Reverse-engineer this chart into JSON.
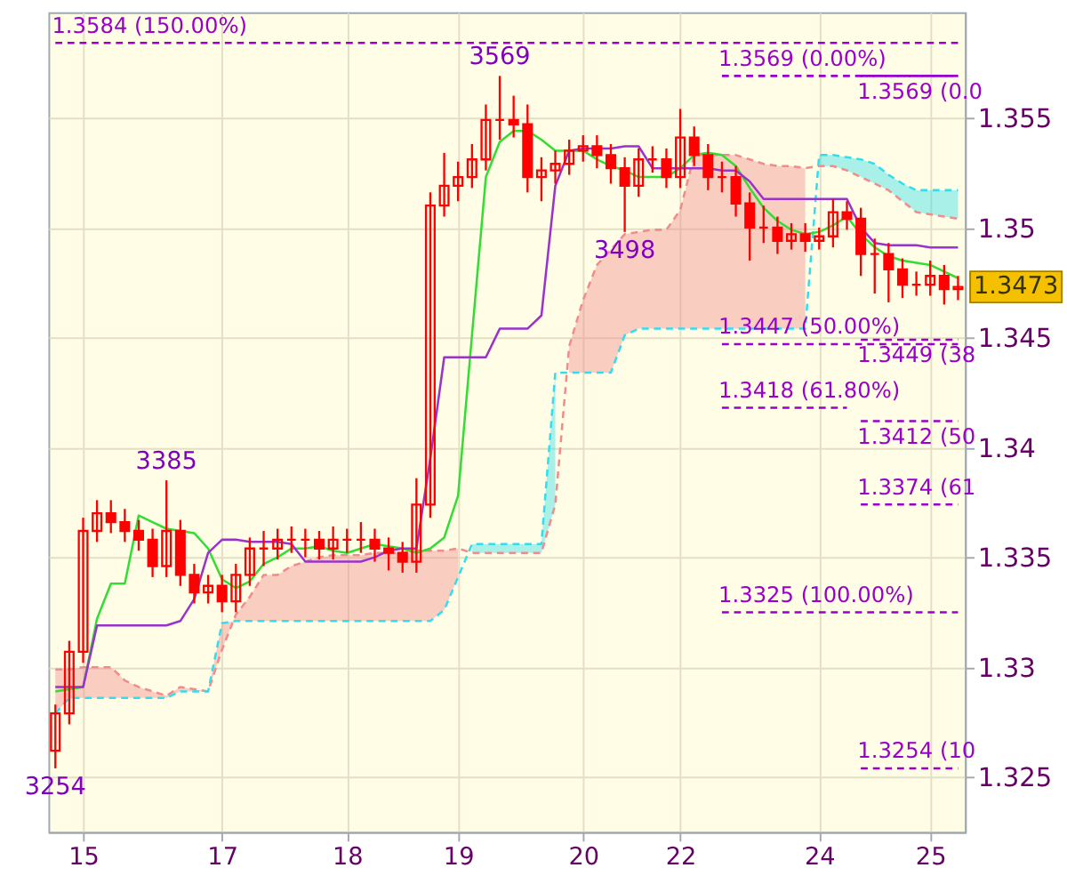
{
  "chart_data": {
    "type": "candlestick",
    "categories": [
      null,
      null,
      "15",
      null,
      null,
      null,
      null,
      null,
      null,
      null,
      null,
      null,
      "17",
      null,
      null,
      null,
      null,
      null,
      null,
      null,
      null,
      "18",
      null,
      null,
      null,
      null,
      null,
      null,
      null,
      "19",
      null,
      null,
      null,
      null,
      null,
      null,
      null,
      null,
      "20",
      null,
      null,
      null,
      null,
      null,
      null,
      "22",
      null,
      null,
      null,
      null,
      null,
      null,
      null,
      null,
      null,
      "24",
      null,
      null,
      null,
      null,
      null,
      null,
      null,
      "25",
      null,
      null
    ],
    "ylim": [
      1.3225,
      1.3598
    ],
    "yticks": [
      1.325,
      1.33,
      1.335,
      1.34,
      1.345,
      1.35,
      1.355
    ],
    "grid": true,
    "series": [
      {
        "type": "line",
        "color": "#f08c8c",
        "line_style": "dashed",
        "values": [
          1.3299,
          1.3299,
          1.33,
          1.33,
          1.33,
          1.3294,
          1.3291,
          1.3289,
          1.3287,
          1.3291,
          1.329,
          1.3289,
          1.3308,
          1.3324,
          1.3332,
          1.3342,
          1.3342,
          1.3346,
          1.3348,
          1.335,
          1.3351,
          1.3351,
          1.3351,
          1.3352,
          1.3352,
          1.3352,
          1.3353,
          1.3353,
          1.3353,
          1.3354,
          1.3352,
          1.3352,
          1.3352,
          1.3352,
          1.3352,
          1.3352,
          1.3374,
          1.3446,
          1.3467,
          1.3483,
          1.349,
          1.3497,
          1.3498,
          1.3499,
          1.3499,
          1.3508,
          1.3533,
          1.3533,
          1.3533,
          1.3533,
          1.3531,
          1.3529,
          1.3528,
          1.3528,
          1.3527,
          1.3528,
          1.3528,
          1.3526,
          1.3523,
          1.352,
          1.3517,
          1.3512,
          1.3507,
          1.3506,
          1.3505,
          1.3504
        ],
        "upper": [
          1.3299,
          1.3299,
          1.33,
          1.33,
          1.33,
          1.3294,
          1.3291,
          1.3289,
          1.3287,
          1.3291,
          1.329,
          1.3289,
          1.3308,
          1.3324,
          1.3332,
          1.3342,
          1.3342,
          1.3346,
          1.3348,
          1.335,
          1.3351,
          1.3351,
          1.3351,
          1.3352,
          1.3352,
          1.3352,
          1.3353,
          1.3353,
          1.3353,
          1.3354,
          null,
          null,
          null,
          null,
          null,
          null,
          null,
          1.3446,
          1.3467,
          1.3483,
          1.349,
          1.3497,
          1.3498,
          1.3499,
          1.3499,
          1.3508,
          1.3533,
          1.3533,
          1.3533,
          1.3533,
          1.3531,
          1.3529,
          1.3528,
          1.3528,
          1.3527,
          null,
          null,
          null,
          null,
          null,
          null,
          null,
          null,
          null,
          null,
          null
        ],
        "lower": [
          1.3279,
          1.3286,
          1.3286,
          1.3286,
          1.3286,
          1.3286,
          1.3286,
          1.3286,
          1.3286,
          1.3289,
          1.3289,
          1.3289,
          1.332,
          1.3321,
          1.3321,
          1.3321,
          1.3321,
          1.3321,
          1.3321,
          1.3321,
          1.3321,
          1.3321,
          1.3321,
          1.3321,
          1.3321,
          1.3321,
          1.3321,
          1.3321,
          1.3326,
          1.3341,
          null,
          null,
          null,
          null,
          null,
          null,
          null,
          1.3434,
          1.3434,
          1.3434,
          1.3434,
          1.3451,
          1.3454,
          1.3454,
          1.3454,
          1.3454,
          1.3454,
          1.3454,
          1.3454,
          1.3454,
          1.3454,
          1.3454,
          1.3454,
          1.3454,
          1.3454,
          null,
          null,
          null,
          null,
          null,
          null,
          null,
          null,
          null,
          null,
          null
        ]
      },
      {
        "type": "line",
        "color": "#33ddee",
        "line_style": "dashed",
        "values": [
          1.3279,
          1.3286,
          1.3286,
          1.3286,
          1.3286,
          1.3286,
          1.3286,
          1.3286,
          1.3286,
          1.3289,
          1.3289,
          1.3289,
          1.332,
          1.3321,
          1.3321,
          1.3321,
          1.3321,
          1.3321,
          1.3321,
          1.3321,
          1.3321,
          1.3321,
          1.3321,
          1.3321,
          1.3321,
          1.3321,
          1.3321,
          1.3321,
          1.3326,
          1.3341,
          1.3356,
          1.3356,
          1.3356,
          1.3356,
          1.3356,
          1.3356,
          1.3434,
          1.3434,
          1.3434,
          1.3434,
          1.3434,
          1.3451,
          1.3454,
          1.3454,
          1.3454,
          1.3454,
          1.3454,
          1.3454,
          1.3454,
          1.3454,
          1.3454,
          1.3454,
          1.3454,
          1.3454,
          1.3454,
          1.3533,
          1.3533,
          1.3532,
          1.3531,
          1.3529,
          1.3524,
          1.352,
          1.3517,
          1.3517,
          1.3517,
          1.3517
        ],
        "upper": [
          null,
          null,
          null,
          null,
          null,
          null,
          null,
          null,
          null,
          null,
          null,
          null,
          null,
          null,
          null,
          null,
          null,
          null,
          null,
          null,
          null,
          null,
          null,
          null,
          null,
          null,
          null,
          null,
          null,
          null,
          1.3356,
          1.3356,
          1.3356,
          1.3356,
          1.3356,
          1.3356,
          1.3434,
          null,
          null,
          null,
          null,
          null,
          null,
          null,
          null,
          null,
          null,
          null,
          null,
          null,
          null,
          null,
          null,
          null,
          null,
          1.3533,
          1.3533,
          1.3532,
          1.3531,
          1.3529,
          1.3524,
          1.352,
          1.3517,
          1.3517,
          1.3517,
          1.3517
        ],
        "lower": [
          null,
          null,
          null,
          null,
          null,
          null,
          null,
          null,
          null,
          null,
          null,
          null,
          null,
          null,
          null,
          null,
          null,
          null,
          null,
          null,
          null,
          null,
          null,
          null,
          null,
          null,
          null,
          null,
          null,
          null,
          1.3352,
          1.3352,
          1.3352,
          1.3352,
          1.3352,
          1.3352,
          1.3374,
          null,
          null,
          null,
          null,
          null,
          null,
          null,
          null,
          null,
          null,
          null,
          null,
          null,
          null,
          null,
          null,
          null,
          null,
          1.3528,
          1.3528,
          1.3526,
          1.3523,
          1.352,
          1.3517,
          1.3512,
          1.3507,
          1.3506,
          1.3505,
          1.3504
        ]
      },
      {
        "type": "line",
        "color": "#33dd33",
        "values": [
          1.3289,
          1.329,
          1.3291,
          1.3322,
          1.3338,
          1.3338,
          1.3369,
          1.3366,
          1.3363,
          1.3362,
          1.3361,
          1.3354,
          1.334,
          1.3336,
          1.3339,
          1.3347,
          1.335,
          1.3354,
          1.3354,
          1.3355,
          1.3353,
          1.3352,
          1.3354,
          1.3356,
          1.3355,
          1.3354,
          1.3352,
          1.3354,
          1.3359,
          1.3378,
          1.3451,
          1.3523,
          1.3539,
          1.3544,
          1.3544,
          1.354,
          1.3535,
          1.3535,
          1.3535,
          1.3531,
          1.3528,
          1.3526,
          1.3523,
          1.3523,
          1.3523,
          1.3527,
          1.3533,
          1.3534,
          1.3533,
          1.3528,
          1.3518,
          1.3509,
          1.3503,
          1.3499,
          1.3497,
          1.3498,
          1.3501,
          1.3505,
          1.3497,
          1.3491,
          1.3487,
          1.3485,
          1.3484,
          1.3483,
          1.348,
          1.3477
        ]
      },
      {
        "type": "line",
        "color": "#9933cc",
        "values": [
          1.3291,
          1.3291,
          1.3291,
          1.3319,
          1.3319,
          1.3319,
          1.3319,
          1.3319,
          1.3319,
          1.3321,
          1.3331,
          1.3352,
          1.3358,
          1.3358,
          1.3357,
          1.3357,
          1.3357,
          1.3356,
          1.3348,
          1.3348,
          1.3348,
          1.3348,
          1.3348,
          1.335,
          1.3353,
          1.3354,
          1.3354,
          1.3395,
          1.3441,
          1.3441,
          1.3441,
          1.3441,
          1.3454,
          1.3454,
          1.3454,
          1.346,
          1.3519,
          1.3535,
          1.3536,
          1.3536,
          1.3536,
          1.3537,
          1.3537,
          1.3527,
          1.3527,
          1.3527,
          1.3527,
          1.3527,
          1.3526,
          1.3526,
          1.3521,
          1.3513,
          1.3513,
          1.3513,
          1.3513,
          1.3513,
          1.3513,
          1.3513,
          1.35,
          1.3493,
          1.3492,
          1.3492,
          1.3492,
          1.3491,
          1.3491,
          1.3491
        ]
      },
      {
        "color": "#ff0000",
        "ohlc": [
          [
            1.3262,
            1.3283,
            1.3254,
            1.3279
          ],
          [
            1.3279,
            1.3312,
            1.3274,
            1.3307
          ],
          [
            1.3307,
            1.3368,
            1.3302,
            1.3362
          ],
          [
            1.3362,
            1.3376,
            1.3357,
            1.337
          ],
          [
            1.337,
            1.3376,
            1.3361,
            1.3366
          ],
          [
            1.3366,
            1.3372,
            1.3357,
            1.3362
          ],
          [
            1.3362,
            1.3367,
            1.3353,
            1.3358
          ],
          [
            1.3358,
            1.3363,
            1.3341,
            1.3346
          ],
          [
            1.3346,
            1.3385,
            1.3341,
            1.3362
          ],
          [
            1.3362,
            1.3367,
            1.3337,
            1.3342
          ],
          [
            1.3342,
            1.3347,
            1.3329,
            1.3334
          ],
          [
            1.3334,
            1.3342,
            1.3329,
            1.3337
          ],
          [
            1.3337,
            1.3342,
            1.3325,
            1.333
          ],
          [
            1.333,
            1.3347,
            1.3325,
            1.3342
          ],
          [
            1.3342,
            1.3359,
            1.3337,
            1.3354
          ],
          [
            1.3354,
            1.3362,
            1.3346,
            1.3354
          ],
          [
            1.3354,
            1.3363,
            1.3349,
            1.3358
          ],
          [
            1.3358,
            1.3364,
            1.3352,
            1.3358
          ],
          [
            1.3358,
            1.3363,
            1.335,
            1.3358
          ],
          [
            1.3358,
            1.3362,
            1.3349,
            1.3354
          ],
          [
            1.3354,
            1.3364,
            1.3349,
            1.3358
          ],
          [
            1.3358,
            1.3363,
            1.3352,
            1.3358
          ],
          [
            1.3358,
            1.3366,
            1.3352,
            1.3358
          ],
          [
            1.3358,
            1.3363,
            1.3348,
            1.3354
          ],
          [
            1.3354,
            1.3359,
            1.3344,
            1.3352
          ],
          [
            1.3352,
            1.3357,
            1.3343,
            1.3348
          ],
          [
            1.3348,
            1.3386,
            1.3343,
            1.3374
          ],
          [
            1.3374,
            1.3516,
            1.3368,
            1.351
          ],
          [
            1.351,
            1.3534,
            1.3505,
            1.3519
          ],
          [
            1.3519,
            1.353,
            1.3512,
            1.3523
          ],
          [
            1.3523,
            1.3538,
            1.3518,
            1.3531
          ],
          [
            1.3531,
            1.3556,
            1.3526,
            1.3549
          ],
          [
            1.3549,
            1.3569,
            1.354,
            1.3549
          ],
          [
            1.3549,
            1.356,
            1.3541,
            1.3547
          ],
          [
            1.3547,
            1.3556,
            1.3516,
            1.3523
          ],
          [
            1.3523,
            1.3532,
            1.3512,
            1.3526
          ],
          [
            1.3526,
            1.3535,
            1.352,
            1.3529
          ],
          [
            1.3529,
            1.354,
            1.3524,
            1.3535
          ],
          [
            1.3535,
            1.3542,
            1.353,
            1.3537
          ],
          [
            1.3537,
            1.3542,
            1.3527,
            1.3533
          ],
          [
            1.3533,
            1.3538,
            1.352,
            1.3527
          ],
          [
            1.3527,
            1.3532,
            1.3498,
            1.3519
          ],
          [
            1.3519,
            1.3536,
            1.3514,
            1.3531
          ],
          [
            1.3531,
            1.3537,
            1.3525,
            1.3531
          ],
          [
            1.3531,
            1.3536,
            1.3518,
            1.3523
          ],
          [
            1.3523,
            1.3554,
            1.3518,
            1.3541
          ],
          [
            1.3541,
            1.3546,
            1.3528,
            1.3533
          ],
          [
            1.3533,
            1.3538,
            1.3517,
            1.3523
          ],
          [
            1.3523,
            1.353,
            1.3516,
            1.3523
          ],
          [
            1.3523,
            1.3528,
            1.3505,
            1.3511
          ],
          [
            1.3511,
            1.3516,
            1.3485,
            1.35
          ],
          [
            1.35,
            1.351,
            1.3493,
            1.35
          ],
          [
            1.35,
            1.3505,
            1.3488,
            1.3494
          ],
          [
            1.3494,
            1.3502,
            1.349,
            1.3497
          ],
          [
            1.3497,
            1.3502,
            1.3489,
            1.3494
          ],
          [
            1.3494,
            1.35,
            1.349,
            1.3496
          ],
          [
            1.3496,
            1.3513,
            1.3491,
            1.3507
          ],
          [
            1.3507,
            1.3512,
            1.3499,
            1.3504
          ],
          [
            1.3504,
            1.3509,
            1.3478,
            1.3488
          ],
          [
            1.3488,
            1.3495,
            1.347,
            1.3488
          ],
          [
            1.3488,
            1.3493,
            1.3466,
            1.3481
          ],
          [
            1.3481,
            1.3486,
            1.3468,
            1.3474
          ],
          [
            1.3474,
            1.348,
            1.3469,
            1.3474
          ],
          [
            1.3474,
            1.3485,
            1.3469,
            1.3478
          ],
          [
            1.3478,
            1.3483,
            1.3465,
            1.3472
          ],
          [
            1.3472,
            1.3478,
            1.3467,
            1.3473
          ]
        ]
      },
      {
        "type": "line",
        "name": "1.3584 (150.00%)",
        "color": "#9900cc",
        "line_style": "dashed",
        "values": [
          1.3584,
          1.3584,
          1.3584,
          1.3584,
          1.3584,
          1.3584,
          1.3584,
          1.3584,
          1.3584,
          1.3584,
          1.3584,
          1.3584,
          1.3584,
          1.3584,
          1.3584,
          1.3584,
          1.3584,
          1.3584,
          1.3584,
          1.3584,
          1.3584,
          1.3584,
          1.3584,
          1.3584,
          1.3584,
          1.3584,
          1.3584,
          1.3584,
          1.3584,
          1.3584,
          1.3584,
          1.3584,
          1.3584,
          1.3584,
          1.3584,
          1.3584,
          1.3584,
          1.3584,
          1.3584,
          1.3584,
          1.3584,
          1.3584,
          1.3584,
          1.3584,
          1.3584,
          1.3584,
          1.3584,
          1.3584,
          1.3584,
          1.3584,
          1.3584,
          1.3584,
          1.3584,
          1.3584,
          1.3584,
          1.3584,
          1.3584,
          1.3584,
          1.3584,
          1.3584,
          1.3584,
          1.3584,
          1.3584,
          1.3584,
          1.3584,
          1.3584
        ]
      },
      {
        "type": "line",
        "name": "1.3569 (0.00%)",
        "color": "#9900cc",
        "line_style": "dashed",
        "values": [
          null,
          null,
          null,
          null,
          null,
          null,
          null,
          null,
          null,
          null,
          null,
          null,
          null,
          null,
          null,
          null,
          null,
          null,
          null,
          null,
          null,
          null,
          null,
          null,
          null,
          null,
          null,
          null,
          null,
          null,
          null,
          null,
          null,
          null,
          null,
          null,
          null,
          null,
          null,
          null,
          null,
          null,
          null,
          null,
          null,
          null,
          null,
          null,
          1.3569,
          1.3569,
          1.3569,
          1.3569,
          1.3569,
          1.3569,
          1.3569,
          1.3569,
          1.3569,
          1.3569,
          1.3569,
          1.3569,
          1.3569,
          1.3569,
          1.3569,
          1.3569,
          1.3569,
          1.3569
        ]
      },
      {
        "type": "line",
        "name": "1.3569 (0.0",
        "color": "#9900cc",
        "line_style": "dashed",
        "values": [
          null,
          null,
          null,
          null,
          null,
          null,
          null,
          null,
          null,
          null,
          null,
          null,
          null,
          null,
          null,
          null,
          null,
          null,
          null,
          null,
          null,
          null,
          null,
          null,
          null,
          null,
          null,
          null,
          null,
          null,
          null,
          null,
          null,
          null,
          null,
          null,
          null,
          null,
          null,
          null,
          null,
          null,
          null,
          null,
          null,
          null,
          null,
          null,
          null,
          null,
          null,
          null,
          null,
          null,
          null,
          null,
          null,
          null,
          1.3569,
          1.3569,
          1.3569,
          1.3569,
          1.3569,
          1.3569,
          1.3569,
          1.3569
        ]
      },
      {
        "type": "line",
        "name": "1.3447 (50.00%)",
        "color": "#9900cc",
        "line_style": "dashed",
        "values": [
          null,
          null,
          null,
          null,
          null,
          null,
          null,
          null,
          null,
          null,
          null,
          null,
          null,
          null,
          null,
          null,
          null,
          null,
          null,
          null,
          null,
          null,
          null,
          null,
          null,
          null,
          null,
          null,
          null,
          null,
          null,
          null,
          null,
          null,
          null,
          null,
          null,
          null,
          null,
          null,
          null,
          null,
          null,
          null,
          null,
          null,
          null,
          null,
          1.3447,
          1.3447,
          1.3447,
          1.3447,
          1.3447,
          1.3447,
          1.3447,
          1.3447,
          1.3447,
          1.3447,
          1.3447,
          1.3447,
          1.3447,
          1.3447,
          1.3447,
          1.3447,
          1.3447,
          1.3447
        ]
      },
      {
        "type": "line",
        "name": "1.3449 (38",
        "color": "#9900cc",
        "line_style": "dashed",
        "values": [
          null,
          null,
          null,
          null,
          null,
          null,
          null,
          null,
          null,
          null,
          null,
          null,
          null,
          null,
          null,
          null,
          null,
          null,
          null,
          null,
          null,
          null,
          null,
          null,
          null,
          null,
          null,
          null,
          null,
          null,
          null,
          null,
          null,
          null,
          null,
          null,
          null,
          null,
          null,
          null,
          null,
          null,
          null,
          null,
          null,
          null,
          null,
          null,
          null,
          null,
          null,
          null,
          null,
          null,
          null,
          null,
          null,
          null,
          1.3449,
          1.3449,
          1.3449,
          1.3449,
          1.3449,
          1.3449,
          1.3449,
          1.3449
        ]
      },
      {
        "type": "line",
        "name": "1.3418 (61.80%)",
        "color": "#9900cc",
        "line_style": "dashed",
        "values": [
          null,
          null,
          null,
          null,
          null,
          null,
          null,
          null,
          null,
          null,
          null,
          null,
          null,
          null,
          null,
          null,
          null,
          null,
          null,
          null,
          null,
          null,
          null,
          null,
          null,
          null,
          null,
          null,
          null,
          null,
          null,
          null,
          null,
          null,
          null,
          null,
          null,
          null,
          null,
          null,
          null,
          null,
          null,
          null,
          null,
          null,
          null,
          null,
          1.3418,
          1.3418,
          1.3418,
          1.3418,
          1.3418,
          1.3418,
          1.3418,
          1.3418,
          1.3418,
          1.3418,
          null,
          null,
          null,
          null,
          null,
          null,
          null,
          null
        ]
      },
      {
        "type": "line",
        "name": "1.3412 (50",
        "color": "#9900cc",
        "line_style": "dashed",
        "values": [
          null,
          null,
          null,
          null,
          null,
          null,
          null,
          null,
          null,
          null,
          null,
          null,
          null,
          null,
          null,
          null,
          null,
          null,
          null,
          null,
          null,
          null,
          null,
          null,
          null,
          null,
          null,
          null,
          null,
          null,
          null,
          null,
          null,
          null,
          null,
          null,
          null,
          null,
          null,
          null,
          null,
          null,
          null,
          null,
          null,
          null,
          null,
          null,
          null,
          null,
          null,
          null,
          null,
          null,
          null,
          null,
          null,
          null,
          1.3412,
          1.3412,
          1.3412,
          1.3412,
          1.3412,
          1.3412,
          1.3412,
          1.3412
        ]
      },
      {
        "type": "line",
        "name": "1.3374 (61",
        "color": "#9900cc",
        "line_style": "dashed",
        "values": [
          null,
          null,
          null,
          null,
          null,
          null,
          null,
          null,
          null,
          null,
          null,
          null,
          null,
          null,
          null,
          null,
          null,
          null,
          null,
          null,
          null,
          null,
          null,
          null,
          null,
          null,
          null,
          null,
          null,
          null,
          null,
          null,
          null,
          null,
          null,
          null,
          null,
          null,
          null,
          null,
          null,
          null,
          null,
          null,
          null,
          null,
          null,
          null,
          null,
          null,
          null,
          null,
          null,
          null,
          null,
          null,
          null,
          null,
          1.3374,
          1.3374,
          1.3374,
          1.3374,
          1.3374,
          1.3374,
          1.3374,
          1.3374
        ]
      },
      {
        "type": "line",
        "name": "1.3325 (100.00%)",
        "color": "#9900cc",
        "line_style": "dashed",
        "values": [
          null,
          null,
          null,
          null,
          null,
          null,
          null,
          null,
          null,
          null,
          null,
          null,
          null,
          null,
          null,
          null,
          null,
          null,
          null,
          null,
          null,
          null,
          null,
          null,
          null,
          null,
          null,
          null,
          null,
          null,
          null,
          null,
          null,
          null,
          null,
          null,
          null,
          null,
          null,
          null,
          null,
          null,
          null,
          null,
          null,
          null,
          null,
          null,
          1.3325,
          1.3325,
          1.3325,
          1.3325,
          1.3325,
          1.3325,
          1.3325,
          1.3325,
          1.3325,
          1.3325,
          1.3325,
          1.3325,
          1.3325,
          1.3325,
          1.3325,
          1.3325,
          1.3325,
          1.3325
        ]
      },
      {
        "type": "line",
        "name": "1.3254 (10",
        "color": "#9900cc",
        "line_style": "dashed",
        "values": [
          null,
          null,
          null,
          null,
          null,
          null,
          null,
          null,
          null,
          null,
          null,
          null,
          null,
          null,
          null,
          null,
          null,
          null,
          null,
          null,
          null,
          null,
          null,
          null,
          null,
          null,
          null,
          null,
          null,
          null,
          null,
          null,
          null,
          null,
          null,
          null,
          null,
          null,
          null,
          null,
          null,
          null,
          null,
          null,
          null,
          null,
          null,
          null,
          null,
          null,
          null,
          null,
          null,
          null,
          null,
          null,
          null,
          null,
          1.3254,
          1.3254,
          1.3254,
          1.3254,
          1.3254,
          1.3254,
          1.3254,
          1.3254
        ]
      }
    ],
    "annotations": [
      {
        "text": "3569",
        "y": 1.3569
      },
      {
        "text": "3385",
        "y": 1.3385
      },
      {
        "text": "3498",
        "y": 1.3498
      },
      {
        "text": "3254",
        "y": 1.3254
      },
      "1.3473"
    ]
  }
}
